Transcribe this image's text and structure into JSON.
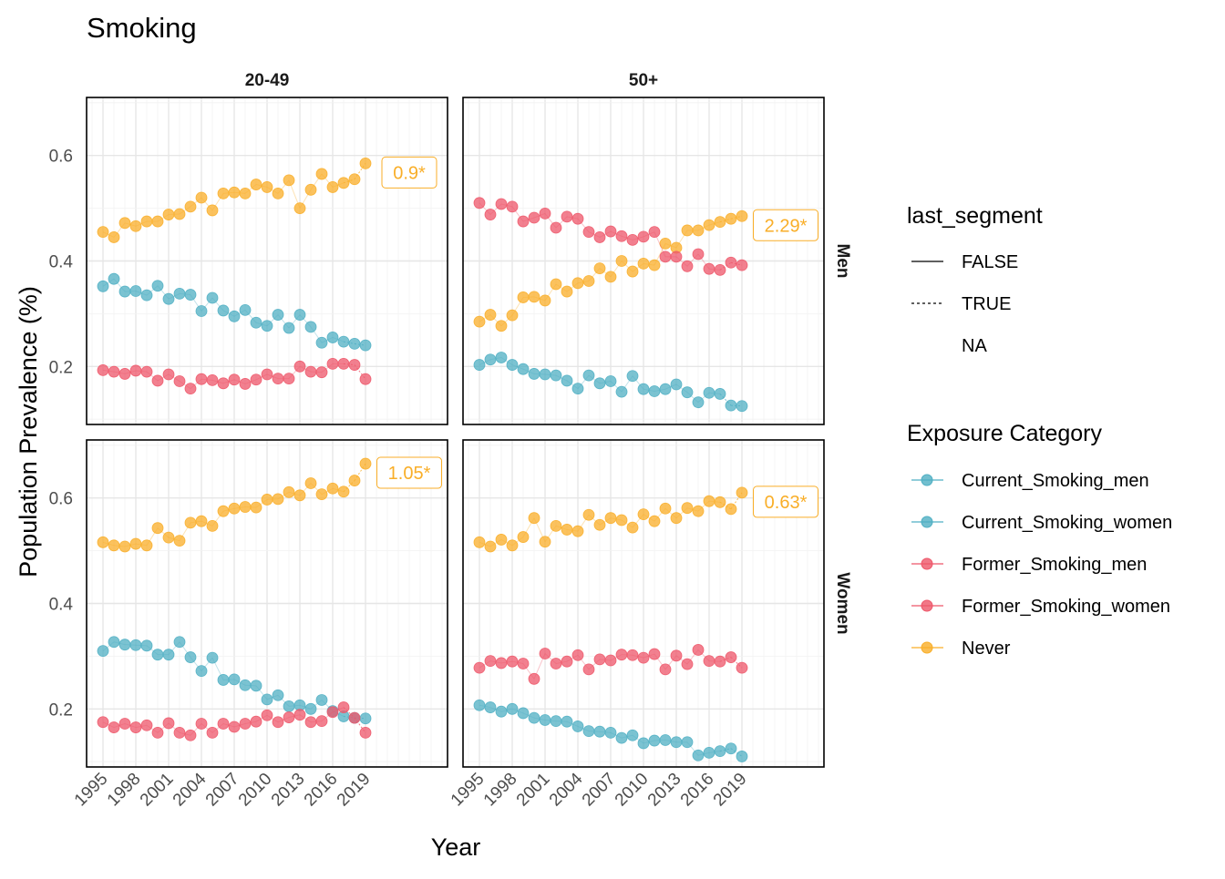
{
  "chart_data": {
    "type": "scatter",
    "title": "Smoking",
    "xlabel": "Year",
    "ylabel": "Population Prevalence (%)",
    "xlim": [
      1993.5,
      2026.5
    ],
    "ylim": [
      0.09,
      0.71
    ],
    "x_ticks": [
      1995,
      1998,
      2001,
      2004,
      2007,
      2010,
      2013,
      2016,
      2019
    ],
    "y_ticks": [
      0.2,
      0.4,
      0.6
    ],
    "y_tick_labels": [
      "0.2",
      "0.4",
      "0.6"
    ],
    "grid": true,
    "legend_position": "right",
    "column_facets": [
      "20-49",
      "50+"
    ],
    "row_facets": [
      "Men",
      "Women"
    ],
    "legends": {
      "linetype": {
        "title": "last_segment",
        "items": [
          {
            "label": "FALSE",
            "style": "solid"
          },
          {
            "label": "TRUE",
            "style": "dotted"
          },
          {
            "label": "NA",
            "style": "none"
          }
        ]
      },
      "color": {
        "title": "Exposure Category",
        "items": [
          {
            "label": "Current_Smoking_men",
            "color": "#4FAFC3"
          },
          {
            "label": "Current_Smoking_women",
            "color": "#4FAFC3"
          },
          {
            "label": "Former_Smoking_men",
            "color": "#EE5669"
          },
          {
            "label": "Former_Smoking_women",
            "color": "#EE5669"
          },
          {
            "label": "Never",
            "color": "#F9AE28"
          }
        ]
      }
    },
    "panels": [
      {
        "col": "20-49",
        "row": "Men",
        "annotation": "0.9*",
        "series": [
          {
            "category": "Never",
            "color": "#F9AE28",
            "x": [
              1995,
              1996,
              1997,
              1998,
              1999,
              2000,
              2001,
              2002,
              2003,
              2004,
              2005,
              2006,
              2007,
              2008,
              2009,
              2010,
              2011,
              2012,
              2013,
              2014,
              2015,
              2016,
              2017,
              2018,
              2019
            ],
            "y": [
              0.455,
              0.445,
              0.472,
              0.466,
              0.475,
              0.475,
              0.488,
              0.489,
              0.503,
              0.52,
              0.496,
              0.528,
              0.53,
              0.528,
              0.545,
              0.54,
              0.528,
              0.553,
              0.5,
              0.535,
              0.565,
              0.54,
              0.548,
              0.555,
              0.585
            ]
          },
          {
            "category": "Current_Smoking_men",
            "color": "#4FAFC3",
            "x": [
              1995,
              1996,
              1997,
              1998,
              1999,
              2000,
              2001,
              2002,
              2003,
              2004,
              2005,
              2006,
              2007,
              2008,
              2009,
              2010,
              2011,
              2012,
              2013,
              2014,
              2015,
              2016,
              2017,
              2018,
              2019
            ],
            "y": [
              0.352,
              0.366,
              0.342,
              0.343,
              0.335,
              0.353,
              0.328,
              0.338,
              0.336,
              0.305,
              0.33,
              0.306,
              0.295,
              0.307,
              0.283,
              0.277,
              0.298,
              0.273,
              0.298,
              0.275,
              0.245,
              0.255,
              0.247,
              0.243,
              0.24
            ]
          },
          {
            "category": "Former_Smoking_men",
            "color": "#EE5669",
            "x": [
              1995,
              1996,
              1997,
              1998,
              1999,
              2000,
              2001,
              2002,
              2003,
              2004,
              2005,
              2006,
              2007,
              2008,
              2009,
              2010,
              2011,
              2012,
              2013,
              2014,
              2015,
              2016,
              2017,
              2018,
              2019
            ],
            "y": [
              0.193,
              0.19,
              0.186,
              0.192,
              0.19,
              0.173,
              0.185,
              0.172,
              0.158,
              0.176,
              0.174,
              0.168,
              0.175,
              0.167,
              0.175,
              0.185,
              0.177,
              0.177,
              0.2,
              0.19,
              0.189,
              0.205,
              0.205,
              0.203,
              0.176
            ]
          }
        ]
      },
      {
        "col": "50+",
        "row": "Men",
        "annotation": "2.29*",
        "series": [
          {
            "category": "Never",
            "color": "#F9AE28",
            "x": [
              1995,
              1996,
              1997,
              1998,
              1999,
              2000,
              2001,
              2002,
              2003,
              2004,
              2005,
              2006,
              2007,
              2008,
              2009,
              2010,
              2011,
              2012,
              2013,
              2014,
              2015,
              2016,
              2017,
              2018,
              2019
            ],
            "y": [
              0.285,
              0.298,
              0.277,
              0.297,
              0.331,
              0.332,
              0.325,
              0.356,
              0.342,
              0.358,
              0.362,
              0.386,
              0.37,
              0.4,
              0.38,
              0.395,
              0.392,
              0.433,
              0.425,
              0.458,
              0.458,
              0.468,
              0.474,
              0.48,
              0.485
            ]
          },
          {
            "category": "Current_Smoking_men",
            "color": "#4FAFC3",
            "x": [
              1995,
              1996,
              1997,
              1998,
              1999,
              2000,
              2001,
              2002,
              2003,
              2004,
              2005,
              2006,
              2007,
              2008,
              2009,
              2010,
              2011,
              2012,
              2013,
              2014,
              2015,
              2016,
              2017,
              2018,
              2019
            ],
            "y": [
              0.203,
              0.213,
              0.217,
              0.203,
              0.195,
              0.186,
              0.185,
              0.183,
              0.173,
              0.158,
              0.183,
              0.168,
              0.172,
              0.152,
              0.182,
              0.157,
              0.153,
              0.157,
              0.166,
              0.151,
              0.132,
              0.15,
              0.148,
              0.126,
              0.125
            ]
          },
          {
            "category": "Former_Smoking_men",
            "color": "#EE5669",
            "x": [
              1995,
              1996,
              1997,
              1998,
              1999,
              2000,
              2001,
              2002,
              2003,
              2004,
              2005,
              2006,
              2007,
              2008,
              2009,
              2010,
              2011,
              2012,
              2013,
              2014,
              2015,
              2016,
              2017,
              2018,
              2019
            ],
            "y": [
              0.51,
              0.488,
              0.508,
              0.503,
              0.475,
              0.482,
              0.49,
              0.463,
              0.484,
              0.48,
              0.455,
              0.445,
              0.456,
              0.447,
              0.44,
              0.446,
              0.455,
              0.408,
              0.408,
              0.39,
              0.413,
              0.385,
              0.383,
              0.397,
              0.392
            ]
          }
        ]
      },
      {
        "col": "20-49",
        "row": "Women",
        "annotation": "1.05*",
        "series": [
          {
            "category": "Never",
            "color": "#F9AE28",
            "x": [
              1995,
              1996,
              1997,
              1998,
              1999,
              2000,
              2001,
              2002,
              2003,
              2004,
              2005,
              2006,
              2007,
              2008,
              2009,
              2010,
              2011,
              2012,
              2013,
              2014,
              2015,
              2016,
              2017,
              2018,
              2019
            ],
            "y": [
              0.516,
              0.51,
              0.508,
              0.513,
              0.51,
              0.543,
              0.525,
              0.519,
              0.553,
              0.556,
              0.547,
              0.575,
              0.58,
              0.583,
              0.582,
              0.597,
              0.598,
              0.611,
              0.605,
              0.628,
              0.607,
              0.618,
              0.612,
              0.633,
              0.665
            ]
          },
          {
            "category": "Current_Smoking_women",
            "color": "#4FAFC3",
            "x": [
              1995,
              1996,
              1997,
              1998,
              1999,
              2000,
              2001,
              2002,
              2003,
              2004,
              2005,
              2006,
              2007,
              2008,
              2009,
              2010,
              2011,
              2012,
              2013,
              2014,
              2015,
              2016,
              2017,
              2018,
              2019
            ],
            "y": [
              0.31,
              0.327,
              0.322,
              0.321,
              0.32,
              0.303,
              0.303,
              0.327,
              0.298,
              0.272,
              0.297,
              0.255,
              0.256,
              0.245,
              0.244,
              0.218,
              0.226,
              0.205,
              0.207,
              0.2,
              0.217,
              0.196,
              0.186,
              0.183,
              0.182
            ]
          },
          {
            "category": "Former_Smoking_women",
            "color": "#EE5669",
            "x": [
              1995,
              1996,
              1997,
              1998,
              1999,
              2000,
              2001,
              2002,
              2003,
              2004,
              2005,
              2006,
              2007,
              2008,
              2009,
              2010,
              2011,
              2012,
              2013,
              2014,
              2015,
              2016,
              2017,
              2018,
              2019
            ],
            "y": [
              0.175,
              0.165,
              0.172,
              0.165,
              0.169,
              0.155,
              0.173,
              0.155,
              0.15,
              0.172,
              0.155,
              0.172,
              0.166,
              0.172,
              0.176,
              0.188,
              0.175,
              0.184,
              0.189,
              0.175,
              0.177,
              0.194,
              0.203,
              0.183,
              0.155
            ]
          }
        ]
      },
      {
        "col": "50+",
        "row": "Women",
        "annotation": "0.63*",
        "series": [
          {
            "category": "Never",
            "color": "#F9AE28",
            "x": [
              1995,
              1996,
              1997,
              1998,
              1999,
              2000,
              2001,
              2002,
              2003,
              2004,
              2005,
              2006,
              2007,
              2008,
              2009,
              2010,
              2011,
              2012,
              2013,
              2014,
              2015,
              2016,
              2017,
              2018,
              2019
            ],
            "y": [
              0.516,
              0.508,
              0.521,
              0.51,
              0.526,
              0.562,
              0.517,
              0.547,
              0.54,
              0.537,
              0.568,
              0.549,
              0.562,
              0.558,
              0.544,
              0.569,
              0.556,
              0.58,
              0.562,
              0.581,
              0.575,
              0.594,
              0.592,
              0.579,
              0.61
            ]
          },
          {
            "category": "Current_Smoking_women",
            "color": "#4FAFC3",
            "x": [
              1995,
              1996,
              1997,
              1998,
              1999,
              2000,
              2001,
              2002,
              2003,
              2004,
              2005,
              2006,
              2007,
              2008,
              2009,
              2010,
              2011,
              2012,
              2013,
              2014,
              2015,
              2016,
              2017,
              2018,
              2019
            ],
            "y": [
              0.207,
              0.203,
              0.195,
              0.2,
              0.192,
              0.183,
              0.179,
              0.177,
              0.176,
              0.167,
              0.158,
              0.157,
              0.155,
              0.145,
              0.15,
              0.135,
              0.14,
              0.141,
              0.137,
              0.137,
              0.112,
              0.117,
              0.12,
              0.125,
              0.11
            ]
          },
          {
            "category": "Former_Smoking_women",
            "color": "#EE5669",
            "x": [
              1995,
              1996,
              1997,
              1998,
              1999,
              2000,
              2001,
              2002,
              2003,
              2004,
              2005,
              2006,
              2007,
              2008,
              2009,
              2010,
              2011,
              2012,
              2013,
              2014,
              2015,
              2016,
              2017,
              2018,
              2019
            ],
            "y": [
              0.278,
              0.291,
              0.287,
              0.29,
              0.286,
              0.257,
              0.305,
              0.286,
              0.29,
              0.302,
              0.275,
              0.294,
              0.292,
              0.303,
              0.302,
              0.297,
              0.304,
              0.275,
              0.301,
              0.285,
              0.312,
              0.291,
              0.29,
              0.298,
              0.278
            ]
          }
        ]
      }
    ]
  }
}
